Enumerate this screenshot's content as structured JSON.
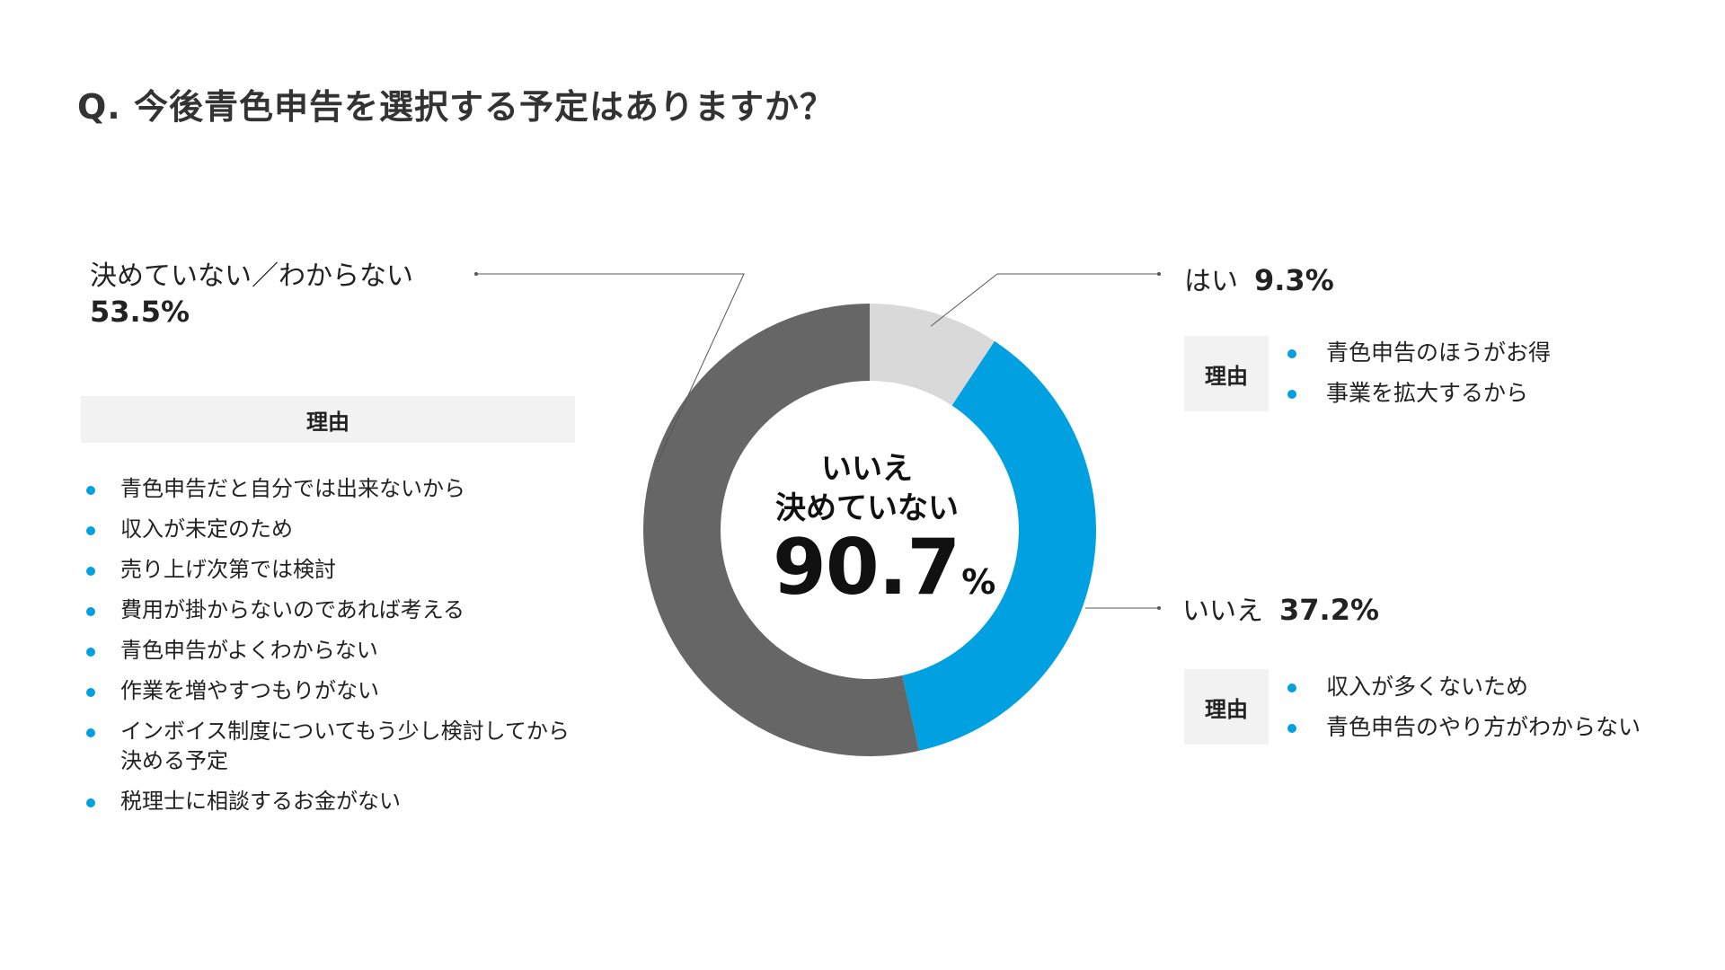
{
  "title": "Q. 今後青色申告を選択する予定はありますか？",
  "center": {
    "line1": "いいえ",
    "line2": "決めていない",
    "value": "90.7",
    "unit": "%"
  },
  "left": {
    "label": "決めていない／わからない",
    "percent": "53.5%",
    "reason_header": "理由",
    "reasons": [
      "青色申告だと自分では出来ないから",
      "収入が未定のため",
      "売り上げ次第では検討",
      "費用が掛からないのであれば考える",
      "青色申告がよくわからない",
      "作業を増やすつもりがない",
      "インボイス制度についてもう少し検討してから決める予定",
      "税理士に相談するお金がない"
    ]
  },
  "yes": {
    "label": "はい",
    "percent": "9.3%",
    "reason_header": "理由",
    "reasons": [
      "青色申告のほうがお得",
      "事業を拡大するから"
    ]
  },
  "no": {
    "label": "いいえ",
    "percent": "37.2%",
    "reason_header": "理由",
    "reasons": [
      "収入が多くないため",
      "青色申告のやり方がわからない"
    ]
  },
  "chart_data": {
    "type": "pie",
    "subtype": "donut",
    "title": "Q. 今後青色申告を選択する予定はありますか？",
    "categories": [
      "はい",
      "いいえ",
      "決めていない／わからない"
    ],
    "values": [
      9.3,
      37.2,
      53.5
    ],
    "colors": [
      "#d9d9d9",
      "#00a0e1",
      "#666666"
    ],
    "start_angle": "12 o'clock",
    "direction": "clockwise"
  }
}
